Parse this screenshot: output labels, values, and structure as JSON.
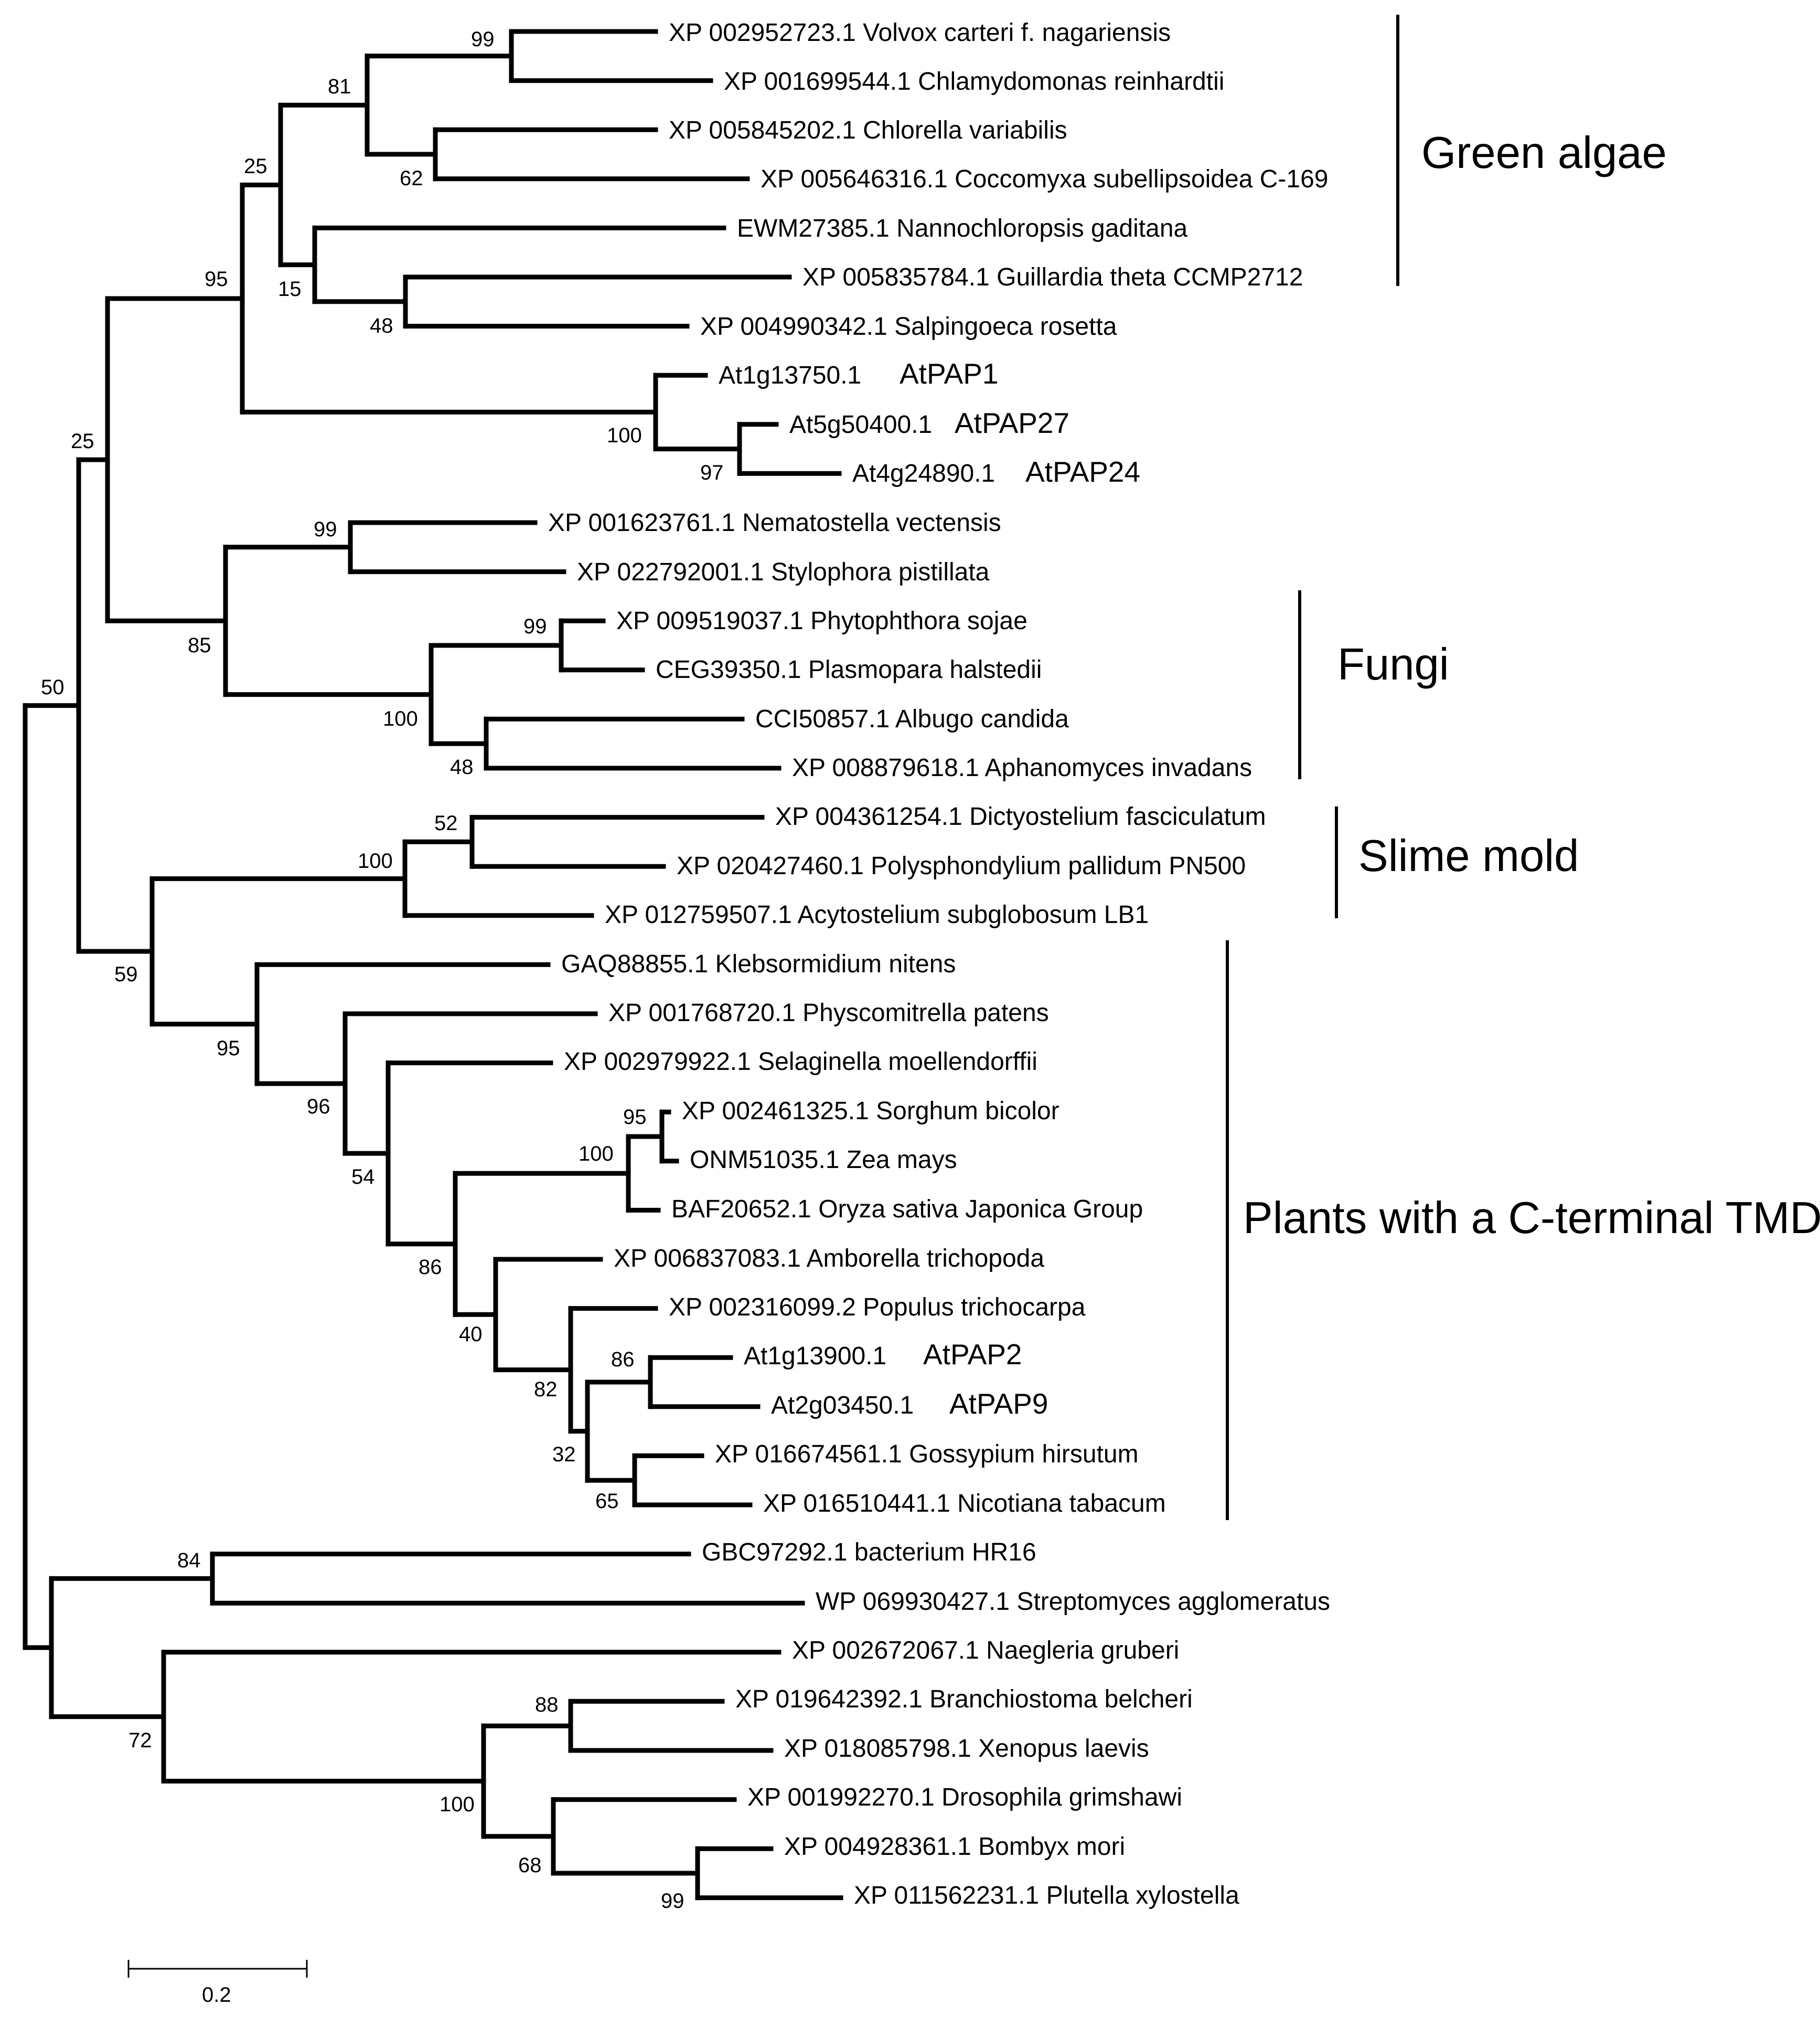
{
  "figure": {
    "type": "phylogenetic_tree",
    "scale_bar_label": "0.2"
  },
  "taxa": [
    {
      "accession": "XP 002952723.1",
      "species": "Volvox carteri f. nagariensis"
    },
    {
      "accession": "XP 001699544.1",
      "species": "Chlamydomonas reinhardtii"
    },
    {
      "accession": "XP 005845202.1",
      "species": "Chlorella variabilis"
    },
    {
      "accession": "XP 005646316.1",
      "species": "Coccomyxa subellipsoidea C-169"
    },
    {
      "accession": "EWM27385.1",
      "species": "Nannochloropsis gaditana"
    },
    {
      "accession": "XP 005835784.1",
      "species": "Guillardia theta CCMP2712"
    },
    {
      "accession": "XP 004990342.1",
      "species": "Salpingoeca rosetta"
    },
    {
      "accession": "At1g13750.1",
      "species": "",
      "pap": "AtPAP1"
    },
    {
      "accession": "At5g50400.1",
      "species": "",
      "pap": "AtPAP27"
    },
    {
      "accession": "At4g24890.1",
      "species": "",
      "pap": "AtPAP24"
    },
    {
      "accession": "XP 001623761.1",
      "species": "Nematostella vectensis"
    },
    {
      "accession": "XP 022792001.1",
      "species": "Stylophora pistillata"
    },
    {
      "accession": "XP 009519037.1",
      "species": "Phytophthora sojae"
    },
    {
      "accession": "CEG39350.1",
      "species": "Plasmopara halstedii"
    },
    {
      "accession": "CCI50857.1",
      "species": "Albugo candida"
    },
    {
      "accession": "XP 008879618.1",
      "species": "Aphanomyces invadans"
    },
    {
      "accession": "XP 004361254.1",
      "species": "Dictyostelium fasciculatum"
    },
    {
      "accession": "XP 020427460.1",
      "species": "Polysphondylium pallidum PN500"
    },
    {
      "accession": "XP 012759507.1",
      "species": "Acytostelium subglobosum LB1"
    },
    {
      "accession": "GAQ88855.1",
      "species": "Klebsormidium nitens"
    },
    {
      "accession": "XP 001768720.1",
      "species": "Physcomitrella patens"
    },
    {
      "accession": "XP 002979922.1",
      "species": "Selaginella moellendorffii"
    },
    {
      "accession": "XP 002461325.1",
      "species": "Sorghum bicolor"
    },
    {
      "accession": "ONM51035.1",
      "species": "Zea mays"
    },
    {
      "accession": "BAF20652.1",
      "species": "Oryza sativa Japonica Group"
    },
    {
      "accession": "XP 006837083.1",
      "species": "Amborella trichopoda"
    },
    {
      "accession": "XP 002316099.2",
      "species": "Populus trichocarpa"
    },
    {
      "accession": "At1g13900.1",
      "species": "",
      "pap": "AtPAP2"
    },
    {
      "accession": "At2g03450.1",
      "species": "",
      "pap": "AtPAP9"
    },
    {
      "accession": "XP 016674561.1",
      "species": "Gossypium hirsutum"
    },
    {
      "accession": "XP 016510441.1",
      "species": "Nicotiana tabacum"
    },
    {
      "accession": "GBC97292.1",
      "species": "bacterium HR16"
    },
    {
      "accession": "WP 069930427.1",
      "species": "Streptomyces agglomeratus"
    },
    {
      "accession": "XP 002672067.1",
      "species": "Naegleria gruberi"
    },
    {
      "accession": "XP 019642392.1",
      "species": "Branchiostoma belcheri"
    },
    {
      "accession": "XP 018085798.1",
      "species": "Xenopus laevis"
    },
    {
      "accession": "XP 001992270.1",
      "species": "Drosophila grimshawi"
    },
    {
      "accession": "XP 004928361.1",
      "species": "Bombyx mori"
    },
    {
      "accession": "XP 011562231.1",
      "species": "Plutella xylostella"
    }
  ],
  "support_values": [
    "99",
    "81",
    "62",
    "25",
    "15",
    "48",
    "95",
    "100",
    "97",
    "25",
    "99",
    "85",
    "99",
    "100",
    "48",
    "50",
    "52",
    "100",
    "59",
    "95",
    "96",
    "54",
    "95",
    "100",
    "86",
    "40",
    "86",
    "82",
    "32",
    "65",
    "84",
    "72",
    "88",
    "100",
    "68",
    "99"
  ],
  "groups": [
    "Green algae",
    "Fungi",
    "Slime mold",
    "Plants with a C-terminal TMD"
  ]
}
